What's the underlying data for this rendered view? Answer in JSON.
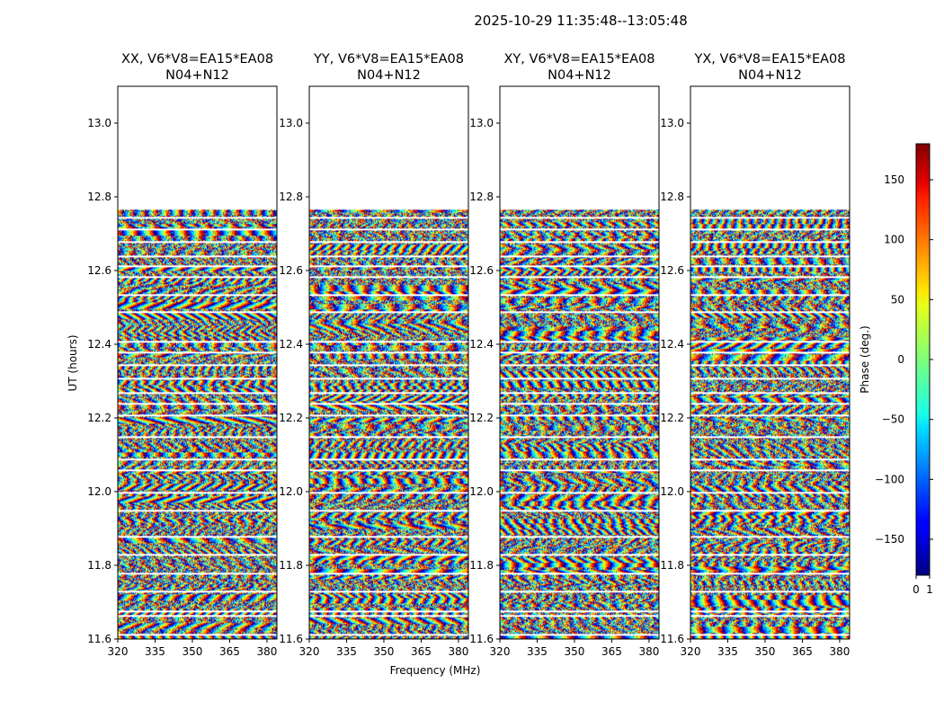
{
  "figure": {
    "suptitle": "2025-10-29  11:35:48--13:05:48"
  },
  "chart_data": {
    "type": "heatmap",
    "suptitle": "2025-10-29  11:35:48--13:05:48",
    "subtitle": "N04+N12",
    "xlabel": "Frequency (MHz)",
    "ylabel": "UT (hours)",
    "xlim": [
      320,
      384
    ],
    "ylim": [
      11.6,
      13.1
    ],
    "xticks": [
      320,
      335,
      350,
      365,
      380
    ],
    "yticks": [
      11.6,
      11.8,
      12.0,
      12.2,
      12.4,
      12.6,
      12.8,
      13.0
    ],
    "data_time_range": [
      11.6,
      12.765
    ],
    "panels": [
      {
        "title": "XX, V6*V8=EA15*EA08",
        "subtitle": "N04+N12"
      },
      {
        "title": "YY, V6*V8=EA15*EA08",
        "subtitle": "N04+N12"
      },
      {
        "title": "XY, V6*V8=EA15*EA08",
        "subtitle": "N04+N12"
      },
      {
        "title": "YX, V6*V8=EA15*EA08",
        "subtitle": "N04+N12"
      }
    ],
    "colorbar": {
      "label": "Phase (deg.)",
      "colormap": "jet",
      "range": [
        -180,
        180
      ],
      "ticks": [
        150,
        100,
        50,
        0,
        -50,
        -100,
        -150
      ],
      "tick_labels": [
        "150",
        "100",
        "50",
        "0",
        "−50",
        "−100",
        "−150"
      ],
      "bottom_ticks": [
        "0",
        "1"
      ]
    },
    "flagged_times": [
      11.615,
      11.665,
      11.678,
      11.73,
      11.78,
      11.83,
      11.88,
      11.95,
      12.0,
      12.06,
      12.09,
      12.15,
      12.21,
      12.24,
      12.27,
      12.31,
      12.345,
      12.38,
      12.41,
      12.49,
      12.535,
      12.585,
      12.615,
      12.64,
      12.68,
      12.715,
      12.745
    ]
  }
}
